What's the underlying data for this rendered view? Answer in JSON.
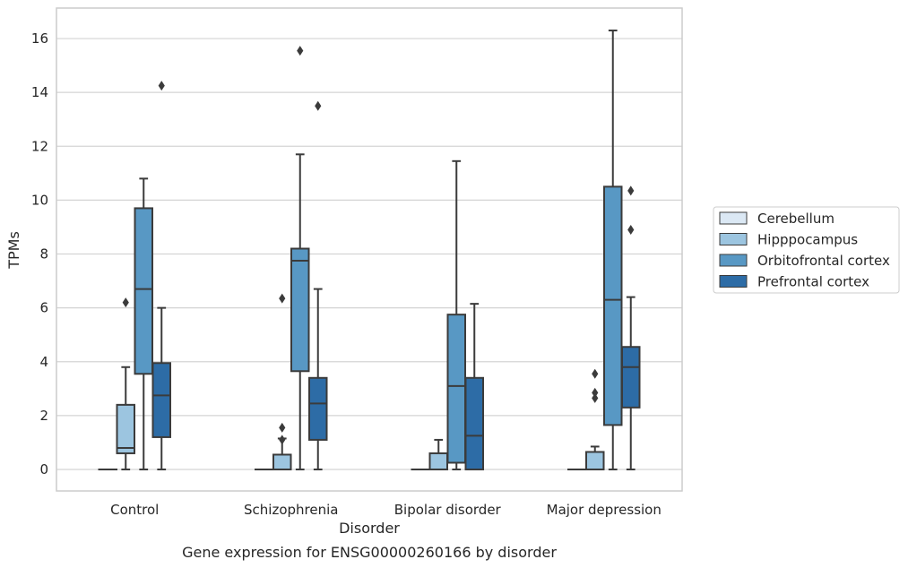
{
  "chart_data": {
    "type": "box",
    "title": "",
    "caption": "Gene expression for ENSG00000260166 by disorder",
    "xlabel": "Disorder",
    "ylabel": "TPMs",
    "ylim": [
      -0.8,
      17.1
    ],
    "yticks": [
      0,
      2,
      4,
      6,
      8,
      10,
      12,
      14,
      16
    ],
    "grid": "horizontal",
    "legend_position": "right",
    "categories": [
      "Control",
      "Schizophrenia",
      "Bipolar disorder",
      "Major depression"
    ],
    "series": [
      {
        "name": "Cerebellum",
        "color": "#dbe8f4",
        "boxes": [
          {
            "min": 0,
            "q1": 0,
            "median": 0,
            "q3": 0,
            "max": 0,
            "outliers": []
          },
          {
            "min": 0,
            "q1": 0,
            "median": 0,
            "q3": 0,
            "max": 0,
            "outliers": []
          },
          {
            "min": 0,
            "q1": 0,
            "median": 0,
            "q3": 0,
            "max": 0,
            "outliers": []
          },
          {
            "min": 0,
            "q1": 0,
            "median": 0,
            "q3": 0,
            "max": 0,
            "outliers": []
          }
        ]
      },
      {
        "name": "Hipppocampus",
        "color": "#9cc5e0",
        "boxes": [
          {
            "min": 0,
            "q1": 0.6,
            "median": 0.8,
            "q3": 2.4,
            "max": 3.8,
            "outliers": [
              6.2
            ]
          },
          {
            "min": 0,
            "q1": 0,
            "median": 0,
            "q3": 0.55,
            "max": 1.15,
            "outliers": [
              1.1,
              1.55,
              6.35
            ]
          },
          {
            "min": 0,
            "q1": 0,
            "median": 0,
            "q3": 0.6,
            "max": 1.1,
            "outliers": []
          },
          {
            "min": 0,
            "q1": 0,
            "median": 0,
            "q3": 0.65,
            "max": 0.85,
            "outliers": [
              2.65,
              2.85,
              3.55
            ]
          }
        ]
      },
      {
        "name": "Orbitofrontal cortex",
        "color": "#5898c4",
        "boxes": [
          {
            "min": 0,
            "q1": 3.55,
            "median": 6.7,
            "q3": 9.7,
            "max": 10.8,
            "outliers": []
          },
          {
            "min": 0,
            "q1": 3.65,
            "median": 7.75,
            "q3": 8.2,
            "max": 11.7,
            "outliers": [
              15.55
            ]
          },
          {
            "min": 0,
            "q1": 0.25,
            "median": 3.1,
            "q3": 5.75,
            "max": 11.45,
            "outliers": []
          },
          {
            "min": 0,
            "q1": 1.65,
            "median": 6.3,
            "q3": 10.5,
            "max": 16.3,
            "outliers": []
          }
        ]
      },
      {
        "name": "Prefrontal cortex",
        "color": "#2d6ca6",
        "boxes": [
          {
            "min": 0,
            "q1": 1.2,
            "median": 2.75,
            "q3": 3.95,
            "max": 6.0,
            "outliers": [
              14.25
            ]
          },
          {
            "min": 0,
            "q1": 1.1,
            "median": 2.45,
            "q3": 3.4,
            "max": 6.7,
            "outliers": [
              13.5
            ]
          },
          {
            "min": 0,
            "q1": 0,
            "median": 1.25,
            "q3": 3.4,
            "max": 6.15,
            "outliers": []
          },
          {
            "min": 0,
            "q1": 2.3,
            "median": 3.8,
            "q3": 4.55,
            "max": 6.4,
            "outliers": [
              8.9,
              10.35
            ]
          }
        ]
      }
    ]
  }
}
